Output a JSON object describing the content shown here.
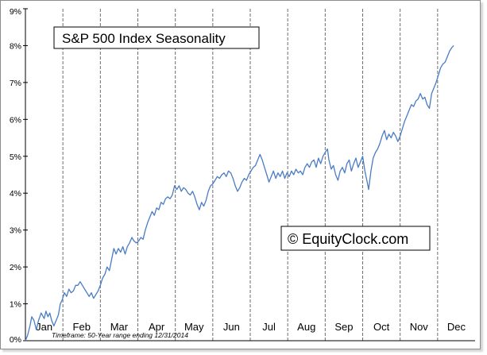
{
  "chart_data": {
    "type": "line",
    "title": "S&P 500 Index Seasonality",
    "watermark": "© EquityClock.com",
    "footnote": "Timeframe: 50-Year range ending 12/31/2014",
    "xlabel": "",
    "ylabel": "",
    "ylim": [
      0,
      9
    ],
    "y_ticks": [
      0,
      1,
      2,
      3,
      4,
      5,
      6,
      7,
      8,
      9
    ],
    "y_tick_labels": [
      "0%",
      "1%",
      "2%",
      "3%",
      "4%",
      "5%",
      "6%",
      "7%",
      "8%",
      "9%"
    ],
    "xlim": [
      0,
      12
    ],
    "month_labels": [
      "Jan",
      "Feb",
      "Mar",
      "Apr",
      "May",
      "Jun",
      "Jul",
      "Aug",
      "Sep",
      "Oct",
      "Nov",
      "Dec"
    ],
    "grid": {
      "vertical_month_lines": true,
      "style": "dashed"
    },
    "colors": {
      "line": "#4a7cc4",
      "grid": "#6e6e6e",
      "axis": "#000000"
    },
    "series": [
      {
        "name": "S&P 500 Index Seasonality",
        "points": [
          [
            0.0,
            0.0
          ],
          [
            0.06,
            0.15
          ],
          [
            0.12,
            0.4
          ],
          [
            0.17,
            0.65
          ],
          [
            0.23,
            0.55
          ],
          [
            0.29,
            0.3
          ],
          [
            0.35,
            0.55
          ],
          [
            0.42,
            0.75
          ],
          [
            0.5,
            0.6
          ],
          [
            0.55,
            0.8
          ],
          [
            0.6,
            0.65
          ],
          [
            0.65,
            0.75
          ],
          [
            0.7,
            0.55
          ],
          [
            0.76,
            0.4
          ],
          [
            0.82,
            0.55
          ],
          [
            0.88,
            0.7
          ],
          [
            0.93,
            1.0
          ],
          [
            0.98,
            1.1
          ],
          [
            1.04,
            1.3
          ],
          [
            1.1,
            1.2
          ],
          [
            1.16,
            1.4
          ],
          [
            1.22,
            1.3
          ],
          [
            1.28,
            1.35
          ],
          [
            1.34,
            1.5
          ],
          [
            1.4,
            1.5
          ],
          [
            1.46,
            1.6
          ],
          [
            1.52,
            1.5
          ],
          [
            1.58,
            1.4
          ],
          [
            1.64,
            1.3
          ],
          [
            1.7,
            1.2
          ],
          [
            1.76,
            1.3
          ],
          [
            1.82,
            1.15
          ],
          [
            1.88,
            1.25
          ],
          [
            1.94,
            1.35
          ],
          [
            2.0,
            1.5
          ],
          [
            2.06,
            1.7
          ],
          [
            2.12,
            1.8
          ],
          [
            2.18,
            2.0
          ],
          [
            2.24,
            1.9
          ],
          [
            2.3,
            2.2
          ],
          [
            2.36,
            2.5
          ],
          [
            2.42,
            2.35
          ],
          [
            2.48,
            2.5
          ],
          [
            2.54,
            2.4
          ],
          [
            2.6,
            2.55
          ],
          [
            2.66,
            2.35
          ],
          [
            2.72,
            2.55
          ],
          [
            2.78,
            2.65
          ],
          [
            2.84,
            2.8
          ],
          [
            2.9,
            2.7
          ],
          [
            2.96,
            2.65
          ],
          [
            3.02,
            2.7
          ],
          [
            3.08,
            2.8
          ],
          [
            3.14,
            2.75
          ],
          [
            3.2,
            3.0
          ],
          [
            3.26,
            3.2
          ],
          [
            3.32,
            3.35
          ],
          [
            3.38,
            3.5
          ],
          [
            3.44,
            3.4
          ],
          [
            3.5,
            3.6
          ],
          [
            3.56,
            3.55
          ],
          [
            3.62,
            3.75
          ],
          [
            3.68,
            3.7
          ],
          [
            3.74,
            3.85
          ],
          [
            3.8,
            3.9
          ],
          [
            3.86,
            3.85
          ],
          [
            3.92,
            3.95
          ],
          [
            3.98,
            4.2
          ],
          [
            4.04,
            4.1
          ],
          [
            4.1,
            4.2
          ],
          [
            4.16,
            4.05
          ],
          [
            4.22,
            4.15
          ],
          [
            4.28,
            4.1
          ],
          [
            4.34,
            4.0
          ],
          [
            4.4,
            3.95
          ],
          [
            4.46,
            4.05
          ],
          [
            4.52,
            3.9
          ],
          [
            4.58,
            3.7
          ],
          [
            4.64,
            3.55
          ],
          [
            4.7,
            3.75
          ],
          [
            4.76,
            3.65
          ],
          [
            4.82,
            3.8
          ],
          [
            4.88,
            4.05
          ],
          [
            4.94,
            4.2
          ],
          [
            5.0,
            4.25
          ],
          [
            5.06,
            4.35
          ],
          [
            5.12,
            4.45
          ],
          [
            5.18,
            4.4
          ],
          [
            5.24,
            4.5
          ],
          [
            5.3,
            4.55
          ],
          [
            5.36,
            4.45
          ],
          [
            5.42,
            4.6
          ],
          [
            5.48,
            4.55
          ],
          [
            5.54,
            4.4
          ],
          [
            5.6,
            4.2
          ],
          [
            5.66,
            4.05
          ],
          [
            5.72,
            4.15
          ],
          [
            5.78,
            4.3
          ],
          [
            5.84,
            4.4
          ],
          [
            5.9,
            4.35
          ],
          [
            5.96,
            4.5
          ],
          [
            6.02,
            4.6
          ],
          [
            6.08,
            4.7
          ],
          [
            6.14,
            4.75
          ],
          [
            6.2,
            4.9
          ],
          [
            6.26,
            5.05
          ],
          [
            6.32,
            4.9
          ],
          [
            6.38,
            4.7
          ],
          [
            6.44,
            4.5
          ],
          [
            6.5,
            4.3
          ],
          [
            6.56,
            4.45
          ],
          [
            6.62,
            4.6
          ],
          [
            6.68,
            4.4
          ],
          [
            6.74,
            4.55
          ],
          [
            6.8,
            4.45
          ],
          [
            6.86,
            4.6
          ],
          [
            6.92,
            4.4
          ],
          [
            6.98,
            4.55
          ],
          [
            7.04,
            4.45
          ],
          [
            7.1,
            4.6
          ],
          [
            7.16,
            4.5
          ],
          [
            7.22,
            4.65
          ],
          [
            7.28,
            4.55
          ],
          [
            7.34,
            4.6
          ],
          [
            7.4,
            4.5
          ],
          [
            7.46,
            4.7
          ],
          [
            7.52,
            4.8
          ],
          [
            7.58,
            4.7
          ],
          [
            7.64,
            4.85
          ],
          [
            7.7,
            4.9
          ],
          [
            7.76,
            4.7
          ],
          [
            7.82,
            4.95
          ],
          [
            7.88,
            4.8
          ],
          [
            7.94,
            5.0
          ],
          [
            8.0,
            5.1
          ],
          [
            8.06,
            5.2
          ],
          [
            8.1,
            4.9
          ],
          [
            8.16,
            4.65
          ],
          [
            8.22,
            4.75
          ],
          [
            8.28,
            4.5
          ],
          [
            8.34,
            4.35
          ],
          [
            8.4,
            4.6
          ],
          [
            8.46,
            4.7
          ],
          [
            8.52,
            4.55
          ],
          [
            8.58,
            4.8
          ],
          [
            8.64,
            4.9
          ],
          [
            8.7,
            4.6
          ],
          [
            8.76,
            4.8
          ],
          [
            8.82,
            4.95
          ],
          [
            8.88,
            4.7
          ],
          [
            8.94,
            4.85
          ],
          [
            9.0,
            5.0
          ],
          [
            9.06,
            4.6
          ],
          [
            9.12,
            4.3
          ],
          [
            9.16,
            4.1
          ],
          [
            9.22,
            4.6
          ],
          [
            9.28,
            4.95
          ],
          [
            9.34,
            5.1
          ],
          [
            9.4,
            5.2
          ],
          [
            9.46,
            5.35
          ],
          [
            9.52,
            5.55
          ],
          [
            9.58,
            5.7
          ],
          [
            9.64,
            5.45
          ],
          [
            9.7,
            5.6
          ],
          [
            9.76,
            5.5
          ],
          [
            9.82,
            5.65
          ],
          [
            9.88,
            5.55
          ],
          [
            9.94,
            5.4
          ],
          [
            10.0,
            5.55
          ],
          [
            10.06,
            5.75
          ],
          [
            10.12,
            5.95
          ],
          [
            10.18,
            6.1
          ],
          [
            10.24,
            6.25
          ],
          [
            10.3,
            6.4
          ],
          [
            10.36,
            6.35
          ],
          [
            10.42,
            6.5
          ],
          [
            10.48,
            6.55
          ],
          [
            10.54,
            6.7
          ],
          [
            10.6,
            6.55
          ],
          [
            10.66,
            6.6
          ],
          [
            10.72,
            6.4
          ],
          [
            10.78,
            6.3
          ],
          [
            10.84,
            6.7
          ],
          [
            10.9,
            6.85
          ],
          [
            10.96,
            7.0
          ],
          [
            11.02,
            7.2
          ],
          [
            11.08,
            7.4
          ],
          [
            11.14,
            7.5
          ],
          [
            11.2,
            7.55
          ],
          [
            11.26,
            7.7
          ],
          [
            11.32,
            7.85
          ],
          [
            11.38,
            7.95
          ],
          [
            11.43,
            8.0
          ]
        ]
      }
    ]
  }
}
